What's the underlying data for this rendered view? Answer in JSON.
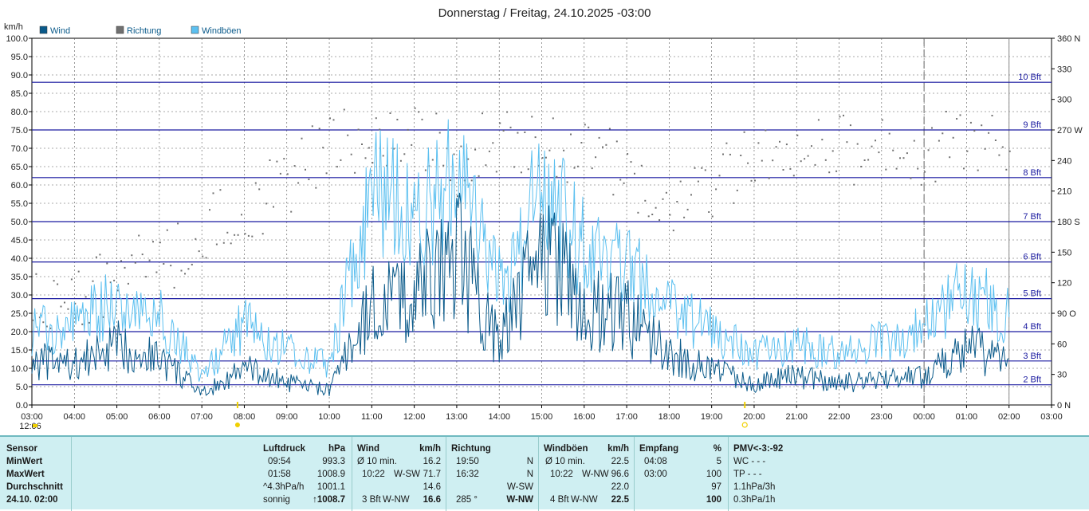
{
  "title": "Donnerstag / Freitag, 24.10.2025  -03:00",
  "chart_data": {
    "type": "line",
    "yunit_left": "km/h",
    "ylim": [
      0,
      100
    ],
    "y2lim": [
      0,
      360
    ],
    "left_ticks": [
      "0.0",
      "5.0",
      "10.0",
      "15.0",
      "20.0",
      "25.0",
      "30.0",
      "35.0",
      "40.0",
      "45.0",
      "50.0",
      "55.0",
      "60.0",
      "65.0",
      "70.0",
      "75.0",
      "80.0",
      "85.0",
      "90.0",
      "95.0",
      "100.0"
    ],
    "right_ticks": [
      "0 N",
      "30",
      "60",
      "90 O",
      "120",
      "150",
      "180 S",
      "210",
      "240",
      "270 W",
      "300",
      "330",
      "360 N"
    ],
    "x_ticks": [
      "03:00",
      "04:00",
      "05:00",
      "06:00",
      "07:00",
      "08:00",
      "09:00",
      "10:00",
      "11:00",
      "12:00",
      "13:00",
      "14:00",
      "15:00",
      "16:00",
      "17:00",
      "18:00",
      "19:00",
      "20:00",
      "21:00",
      "22:00",
      "23:00",
      "00:00",
      "01:00",
      "02:00",
      "03:00"
    ],
    "legend": [
      {
        "name": "Wind",
        "color": "#0a5a8a"
      },
      {
        "name": "Richtung",
        "color": "#707070"
      },
      {
        "name": "Windböen",
        "color": "#5cc0f0"
      }
    ],
    "beaufort": [
      {
        "label": "2 Bft",
        "kmh": 5.5
      },
      {
        "label": "3 Bft",
        "kmh": 12
      },
      {
        "label": "4 Bft",
        "kmh": 20
      },
      {
        "label": "5 Bft",
        "kmh": 29
      },
      {
        "label": "6 Bft",
        "kmh": 39
      },
      {
        "label": "7 Bft",
        "kmh": 50
      },
      {
        "label": "8 Bft",
        "kmh": 62
      },
      {
        "label": "9 Bft",
        "kmh": 75
      },
      {
        "label": "10 Bft",
        "kmh": 88
      }
    ],
    "hours": [
      0,
      1,
      2,
      3,
      4,
      5,
      6,
      7,
      8,
      9,
      10,
      11,
      12,
      13,
      14,
      15,
      16,
      17,
      18,
      19,
      20,
      21,
      22,
      23
    ],
    "wind": [
      12,
      11,
      16,
      13,
      3,
      10,
      6,
      4,
      27,
      30,
      42,
      17,
      42,
      27,
      24,
      14,
      10,
      6,
      8,
      6,
      7,
      8,
      16,
      11
    ],
    "gusts": [
      20,
      22,
      28,
      24,
      8,
      22,
      15,
      11,
      58,
      52,
      60,
      32,
      58,
      42,
      37,
      26,
      20,
      14,
      16,
      15,
      17,
      21,
      31,
      24
    ],
    "direction": [
      100,
      110,
      125,
      140,
      170,
      190,
      220,
      260,
      250,
      270,
      240,
      265,
      260,
      250,
      230,
      200,
      220,
      240,
      245,
      250,
      255,
      250,
      260,
      245
    ],
    "markers": [
      {
        "label": "12:06",
        "hour": 0
      }
    ]
  },
  "footer": {
    "sensor": {
      "header": "Sensor",
      "min": "MinWert",
      "max": "MaxWert",
      "avg": "Durchschnitt",
      "last": "24.10. 02:00"
    },
    "pressure": {
      "header": "Luftdruck",
      "unit": "hPa",
      "r1_time": "09:54",
      "r1_val": "993.3",
      "r2_time": "01:58",
      "r2_val": "1008.9",
      "r3_time": "^4.3hPa/h",
      "r3_val": "1001.1",
      "r4_time": "sonnig",
      "r4_val": "↑1008.7"
    },
    "wind": {
      "header": "Wind",
      "unit": "km/h",
      "r1_a": "Ø 10 min.",
      "r1_val": "16.2",
      "r2_a": "10:22",
      "r2_b": "W-SW",
      "r2_val": "71.7",
      "r3_val": "14.6",
      "r4_a": "3 Bft",
      "r4_b": "W-NW",
      "r4_val": "16.6"
    },
    "direction": {
      "header": "Richtung",
      "r1_a": "19:50",
      "r1_val": "N",
      "r2_a": "16:32",
      "r2_val": "N",
      "r3_val": "W-SW",
      "r4_a": "285 °",
      "r4_val": "W-NW"
    },
    "gusts": {
      "header": "Windböen",
      "unit": "km/h",
      "r1_a": "Ø 10 min.",
      "r1_val": "22.5",
      "r2_a": "10:22",
      "r2_b": "W-NW",
      "r2_val": "96.6",
      "r3_val": "22.0",
      "r4_a": "4 Bft",
      "r4_b": "W-NW",
      "r4_val": "22.5"
    },
    "reception": {
      "header": "Empfang",
      "unit": "%",
      "r1_a": "04:08",
      "r1_val": "5",
      "r2_a": "03:00",
      "r2_val": "100",
      "r3_val": "97",
      "r4_val": "100"
    },
    "pmv": {
      "header": "PMV<-3:-92",
      "r1": "WC - - -",
      "r2": "TP - - -",
      "r3": "1.1hPa/3h",
      "r4": "0.3hPa/1h"
    }
  }
}
